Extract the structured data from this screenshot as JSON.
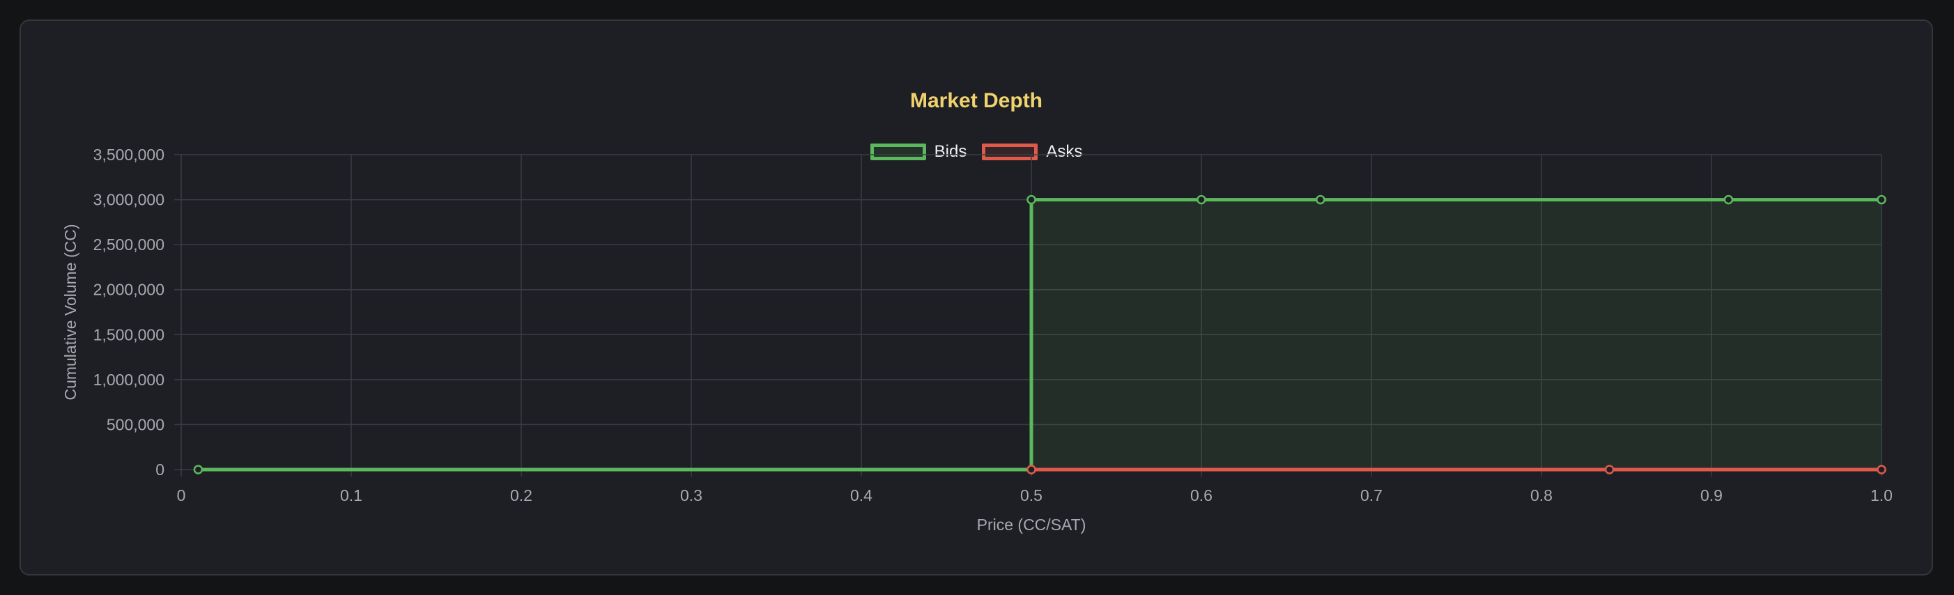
{
  "chart_data": {
    "type": "line",
    "title": "Market Depth",
    "xlabel": "Price (CC/SAT)",
    "ylabel": "Cumulative Volume (CC)",
    "xlim": [
      0,
      1.0
    ],
    "ylim": [
      0,
      3500000
    ],
    "x_ticks": [
      "0",
      "0.1",
      "0.2",
      "0.3",
      "0.4",
      "0.5",
      "0.6",
      "0.7",
      "0.8",
      "0.9",
      "1.0"
    ],
    "y_ticks": [
      "0",
      "500,000",
      "1,000,000",
      "1,500,000",
      "2,000,000",
      "2,500,000",
      "3,000,000",
      "3,500,000"
    ],
    "grid": true,
    "legend_position": "top-center",
    "series": [
      {
        "name": "Bids",
        "color": "#5cb85c",
        "fill": true,
        "points": [
          [
            0.01,
            0
          ],
          [
            0.5,
            0
          ],
          [
            0.5,
            3000000
          ],
          [
            0.6,
            3000000
          ],
          [
            0.67,
            3000000
          ],
          [
            0.91,
            3000000
          ],
          [
            1.0,
            3000000
          ]
        ]
      },
      {
        "name": "Asks",
        "color": "#e05a4a",
        "fill": false,
        "points": [
          [
            0.5,
            0
          ],
          [
            0.84,
            0
          ],
          [
            1.0,
            0
          ]
        ]
      }
    ]
  }
}
